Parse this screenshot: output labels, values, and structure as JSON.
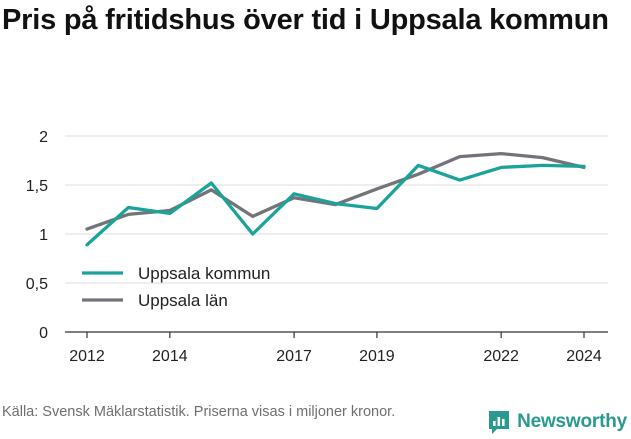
{
  "header": {
    "title": "Pris på fritidshus över tid i Uppsala kommun"
  },
  "footer": {
    "source": "Källa: Svensk Mäklarstatistik. Priserna visas i miljoner kronor.",
    "brand": "Newsworthy"
  },
  "colors": {
    "kommun": "#1aa39a",
    "lan": "#75737a",
    "grid": "#dddddd",
    "brand": "#2a9a90"
  },
  "icons": {
    "brand": "newsworthy-logo-icon"
  },
  "chart_data": {
    "type": "line",
    "x": [
      2012,
      2013,
      2014,
      2015,
      2016,
      2017,
      2018,
      2019,
      2020,
      2021,
      2022,
      2023,
      2024
    ],
    "xticks": [
      2012,
      2014,
      2017,
      2019,
      2022,
      2024
    ],
    "xlim": [
      2012,
      2024
    ],
    "yticks": [
      0,
      0.5,
      1,
      1.5,
      2
    ],
    "ytick_labels": [
      "0",
      "0,5",
      "1",
      "1,5",
      "2"
    ],
    "ylim": [
      0,
      2
    ],
    "grid": "horizontal",
    "legend_position": "center-left",
    "series": [
      {
        "name": "Uppsala kommun",
        "color": "#1aa39a",
        "values": [
          0.89,
          1.27,
          1.21,
          1.52,
          1.0,
          1.41,
          1.31,
          1.26,
          1.7,
          1.55,
          1.68,
          1.7,
          1.69
        ]
      },
      {
        "name": "Uppsala län",
        "color": "#75737a",
        "values": [
          1.05,
          1.2,
          1.24,
          1.45,
          1.18,
          1.37,
          1.3,
          1.46,
          1.61,
          1.79,
          1.82,
          1.78,
          1.68
        ]
      }
    ]
  }
}
